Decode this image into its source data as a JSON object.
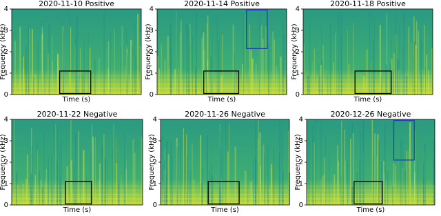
{
  "chart_data": [
    {
      "type": "heatmap",
      "title": "2020-11-10 Positive",
      "x_label": "Time (s)",
      "y_label": "Frequency (kHz)",
      "ylim": [
        0,
        4
      ],
      "yticks": [
        0,
        1,
        2,
        3,
        4
      ],
      "boxes": [
        {
          "color": "#000000",
          "y": [
            0.05,
            1.1
          ]
        }
      ]
    },
    {
      "type": "heatmap",
      "title": "2020-11-14 Positive",
      "x_label": "Time (s)",
      "y_label": "Frequency (kHz)",
      "ylim": [
        0,
        4
      ],
      "yticks": [
        0,
        1,
        2,
        3,
        4
      ],
      "boxes": [
        {
          "color": "#000000",
          "y": [
            0.05,
            1.1
          ]
        },
        {
          "color": "#1f3fbf",
          "y": [
            2.15,
            3.95
          ]
        }
      ]
    },
    {
      "type": "heatmap",
      "title": "2020-11-18 Positive",
      "x_label": "Time (s)",
      "y_label": "Frequency (kHz)",
      "ylim": [
        0,
        4
      ],
      "yticks": [
        0,
        1,
        2,
        3,
        4
      ],
      "boxes": [
        {
          "color": "#000000",
          "y": [
            0.05,
            1.1
          ]
        }
      ]
    },
    {
      "type": "heatmap",
      "title": "2020-11-22 Negative",
      "x_label": "Time (s)",
      "y_label": "Frequency (kHz)",
      "ylim": [
        0,
        4
      ],
      "yticks": [
        0,
        1,
        2,
        3,
        4
      ],
      "boxes": [
        {
          "color": "#000000",
          "y": [
            0.05,
            1.1
          ]
        }
      ]
    },
    {
      "type": "heatmap",
      "title": "2020-11-26 Negative",
      "x_label": "Time (s)",
      "y_label": "Frequency (kHz)",
      "ylim": [
        0,
        4
      ],
      "yticks": [
        0,
        1,
        2,
        3,
        4
      ],
      "boxes": [
        {
          "color": "#000000",
          "y": [
            0.05,
            1.1
          ]
        }
      ]
    },
    {
      "type": "heatmap",
      "title": "2020-12-26 Negative",
      "x_label": "Time (s)",
      "y_label": "Frequency (kHz)",
      "ylim": [
        0,
        4
      ],
      "yticks": [
        0,
        1,
        2,
        3,
        4
      ],
      "boxes": [
        {
          "color": "#000000",
          "y": [
            0.05,
            1.1
          ]
        },
        {
          "color": "#1f3fbf",
          "y": [
            2.1,
            3.95
          ]
        }
      ]
    }
  ]
}
